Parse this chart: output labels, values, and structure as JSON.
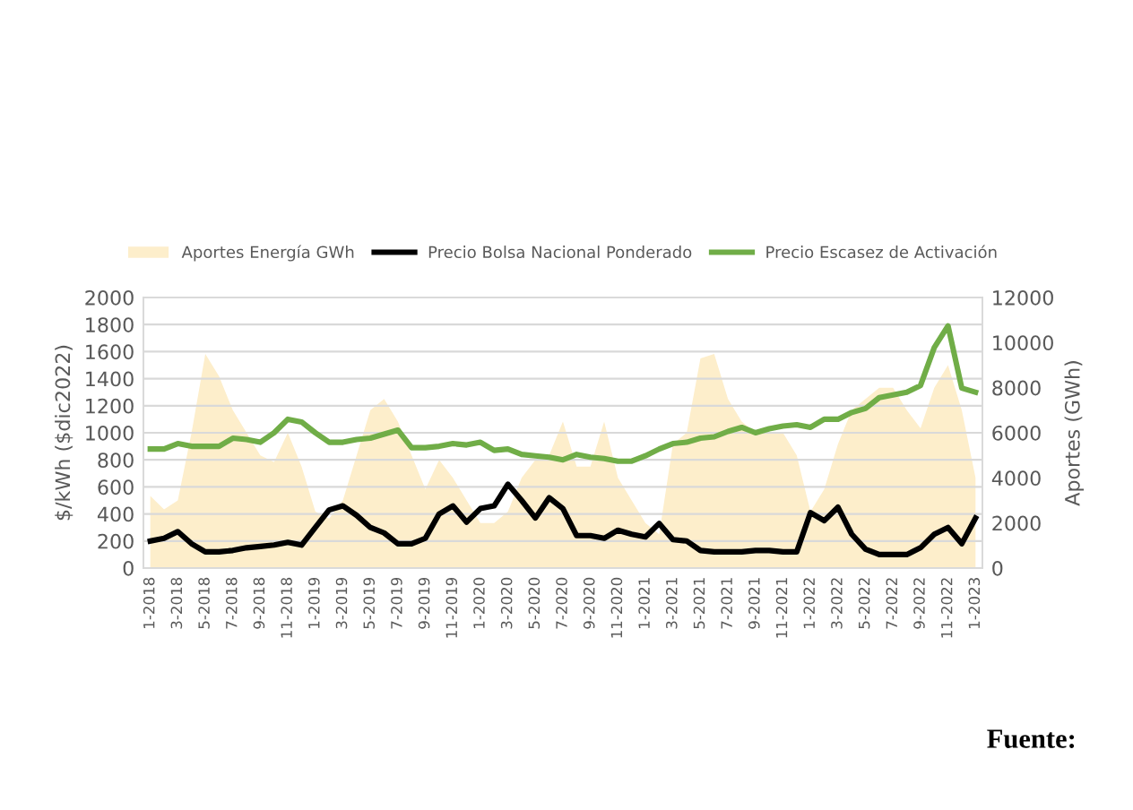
{
  "chart_data": {
    "type": "line",
    "ylabel": "$/kWh ($dic2022)",
    "y2label": "Aportes (GWh)",
    "categories": [
      "1-2018",
      null,
      "3-2018",
      null,
      "5-2018",
      null,
      "7-2018",
      null,
      "9-2018",
      null,
      "11-2018",
      null,
      "1-2019",
      null,
      "3-2019",
      null,
      "5-2019",
      null,
      "7-2019",
      null,
      "9-2019",
      null,
      "11-2019",
      null,
      "1-2020",
      null,
      "3-2020",
      null,
      "5-2020",
      null,
      "7-2020",
      null,
      "9-2020",
      null,
      "11-2020",
      null,
      "1-2021",
      null,
      "3-2021",
      null,
      "5-2021",
      null,
      "7-2021",
      null,
      "9-2021",
      null,
      "11-2021",
      null,
      "1-2022",
      null,
      "3-2022",
      null,
      "5-2022",
      null,
      "7-2022",
      null,
      "9-2022",
      null,
      "11-2022",
      null,
      "1-2023"
    ],
    "series": [
      {
        "name": "Aportes Energía GWh",
        "type": "area",
        "axis": "y2",
        "color": "#fdeecb",
        "values": [
          3200,
          2600,
          3000,
          6000,
          9500,
          8500,
          7000,
          6000,
          5000,
          4700,
          6000,
          4500,
          2500,
          2200,
          3000,
          5000,
          7000,
          7500,
          6500,
          5000,
          3500,
          4800,
          4000,
          3000,
          2000,
          2000,
          2500,
          4000,
          4800,
          5000,
          6500,
          4500,
          4500,
          6500,
          4000,
          3000,
          2000,
          1500,
          5500,
          6000,
          9300,
          9500,
          7500,
          6500,
          6000,
          6000,
          6000,
          5000,
          2500,
          3500,
          5500,
          7000,
          7500,
          8000,
          8000,
          7000,
          6200,
          8000,
          9000,
          7000,
          4000
        ]
      },
      {
        "name": "Precio Bolsa Nacional Ponderado",
        "color": "#000000",
        "values": [
          200,
          220,
          270,
          180,
          120,
          120,
          130,
          150,
          160,
          170,
          190,
          170,
          300,
          430,
          460,
          390,
          300,
          260,
          180,
          180,
          220,
          400,
          460,
          340,
          440,
          460,
          620,
          500,
          370,
          520,
          440,
          240,
          240,
          220,
          280,
          250,
          230,
          330,
          210,
          200,
          130,
          120,
          120,
          120,
          130,
          130,
          120,
          120,
          410,
          350,
          450,
          250,
          140,
          100,
          100,
          100,
          150,
          250,
          300,
          180,
          370
        ]
      },
      {
        "name": "Precio Escasez de Activación",
        "color": "#70ad47",
        "values": [
          880,
          880,
          920,
          900,
          900,
          900,
          960,
          950,
          930,
          1000,
          1100,
          1080,
          1000,
          930,
          930,
          950,
          960,
          990,
          1020,
          890,
          890,
          900,
          920,
          910,
          930,
          870,
          880,
          840,
          830,
          820,
          800,
          840,
          820,
          810,
          790,
          790,
          830,
          880,
          920,
          930,
          960,
          970,
          1010,
          1040,
          1000,
          1030,
          1050,
          1060,
          1040,
          1100,
          1100,
          1150,
          1180,
          1260,
          1280,
          1300,
          1350,
          1630,
          1790,
          1330,
          1300
        ]
      }
    ],
    "ylim": [
      0,
      2000
    ],
    "yticks": [
      0,
      200,
      400,
      600,
      800,
      1000,
      1200,
      1400,
      1600,
      1800,
      2000
    ],
    "y2lim": [
      0,
      12000
    ],
    "y2ticks": [
      0,
      2000,
      4000,
      6000,
      8000,
      10000,
      12000
    ],
    "grid": "y",
    "legend": "top",
    "marker": "none",
    "line_style": "solid",
    "annotations": [
      "Fuente:"
    ]
  }
}
